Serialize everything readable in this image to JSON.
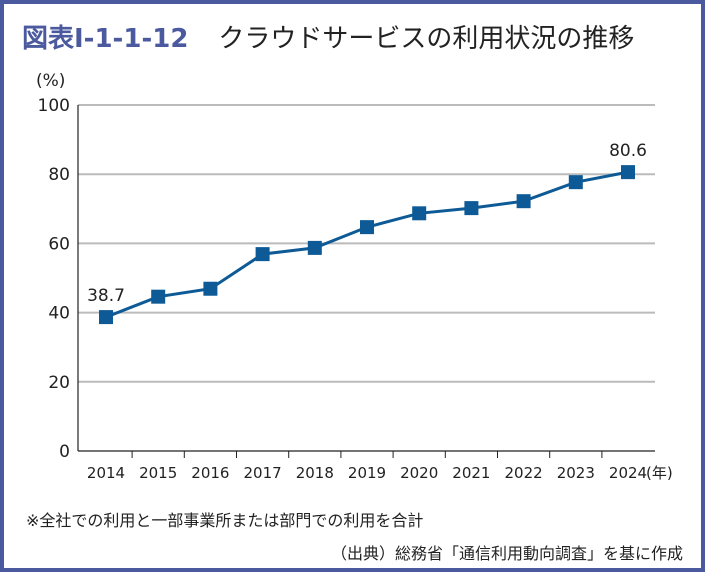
{
  "title": {
    "prefix": "図表Ⅰ-1-1-12",
    "text": "クラウドサービスの利用状況の推移"
  },
  "colors": {
    "frame": "#4b5a9f",
    "series": "#0d5a96",
    "grid": "#bbbbbb"
  },
  "chart_data": {
    "type": "line",
    "title": "クラウドサービスの利用状況の推移",
    "ylabel": "(%)",
    "xlabel_unit": "(年)",
    "ylim": [
      0,
      100
    ],
    "yticks": [
      0,
      20,
      40,
      60,
      80,
      100
    ],
    "grid": true,
    "categories": [
      "2014",
      "2015",
      "2016",
      "2017",
      "2018",
      "2019",
      "2020",
      "2021",
      "2022",
      "2023",
      "2024"
    ],
    "series": [
      {
        "values": [
          38.7,
          44.6,
          46.9,
          56.9,
          58.7,
          64.7,
          68.7,
          70.2,
          72.2,
          77.7,
          80.6
        ]
      }
    ],
    "data_labels": {
      "first": "38.7",
      "last": "80.6"
    }
  },
  "note": "※全社での利用と一部事業所または部門での利用を合計",
  "source": "（出典）総務省「通信利用動向調査」を基に作成"
}
